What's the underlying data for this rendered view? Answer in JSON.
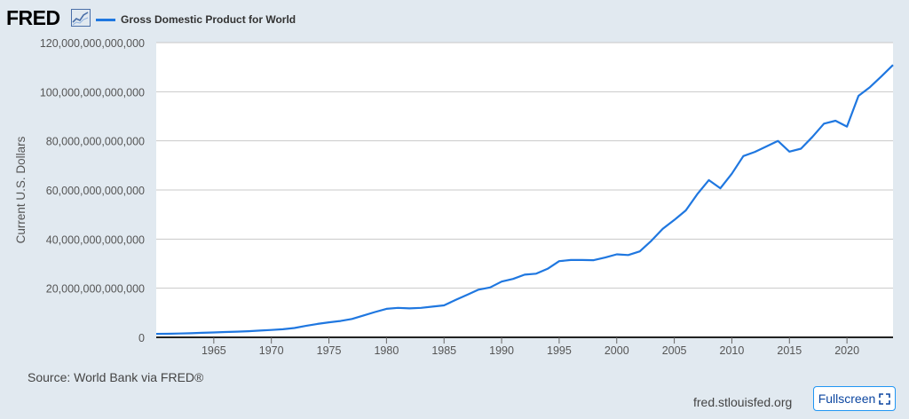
{
  "header": {
    "logo_text": "FRED",
    "logo_icon": "line-graph-icon",
    "legend_label": "Gross Domestic Product for World",
    "series_color": "#1f77e0"
  },
  "footer": {
    "source": "Source: World Bank via FRED®",
    "site": "fred.stlouisfed.org",
    "fullscreen_label": "Fullscreen",
    "fullscreen_icon": "expand-corners-icon",
    "button_border_color": "#2196f3"
  },
  "chart_data": {
    "type": "line",
    "title": "",
    "xlabel": "",
    "ylabel": "Current U.S. Dollars",
    "xlim": [
      1960,
      2024
    ],
    "ylim": [
      0,
      120000000000000
    ],
    "grid": true,
    "legend_placement": "top-left",
    "x_ticks": [
      1965,
      1970,
      1975,
      1980,
      1985,
      1990,
      1995,
      2000,
      2005,
      2010,
      2015,
      2020
    ],
    "y_ticks": [
      0,
      20000000000000,
      40000000000000,
      60000000000000,
      80000000000000,
      100000000000000,
      120000000000000
    ],
    "y_tick_labels": [
      "0",
      "20,000,000,000,000",
      "40,000,000,000,000",
      "60,000,000,000,000",
      "80,000,000,000,000",
      "100,000,000,000,000",
      "120,000,000,000,000"
    ],
    "series": [
      {
        "name": "Gross Domestic Product for World",
        "x": [
          1960,
          1961,
          1962,
          1963,
          1964,
          1965,
          1966,
          1967,
          1968,
          1969,
          1970,
          1971,
          1972,
          1973,
          1974,
          1975,
          1976,
          1977,
          1978,
          1979,
          1980,
          1981,
          1982,
          1983,
          1984,
          1985,
          1986,
          1987,
          1988,
          1989,
          1990,
          1991,
          1992,
          1993,
          1994,
          1995,
          1996,
          1997,
          1998,
          1999,
          2000,
          2001,
          2002,
          2003,
          2004,
          2005,
          2006,
          2007,
          2008,
          2009,
          2010,
          2011,
          2012,
          2013,
          2014,
          2015,
          2016,
          2017,
          2018,
          2019,
          2020,
          2021,
          2022,
          2023,
          2024
        ],
        "y": [
          1400000000000,
          1450000000000,
          1550000000000,
          1680000000000,
          1850000000000,
          2000000000000,
          2180000000000,
          2330000000000,
          2500000000000,
          2760000000000,
          3000000000000,
          3300000000000,
          3800000000000,
          4650000000000,
          5450000000000,
          6100000000000,
          6650000000000,
          7500000000000,
          8900000000000,
          10300000000000,
          11600000000000,
          12000000000000,
          11800000000000,
          12000000000000,
          12500000000000,
          13000000000000,
          15200000000000,
          17300000000000,
          19400000000000,
          20300000000000,
          22700000000000,
          23800000000000,
          25500000000000,
          25900000000000,
          27900000000000,
          31000000000000,
          31500000000000,
          31500000000000,
          31400000000000,
          32500000000000,
          33800000000000,
          33500000000000,
          35000000000000,
          39300000000000,
          44200000000000,
          47800000000000,
          51700000000000,
          58300000000000,
          64000000000000,
          60700000000000,
          66600000000000,
          73800000000000,
          75500000000000,
          77700000000000,
          80000000000000,
          75600000000000,
          76800000000000,
          81600000000000,
          87000000000000,
          88200000000000,
          85800000000000,
          98300000000000,
          101900000000000,
          106300000000000,
          110900000000000
        ]
      }
    ]
  }
}
